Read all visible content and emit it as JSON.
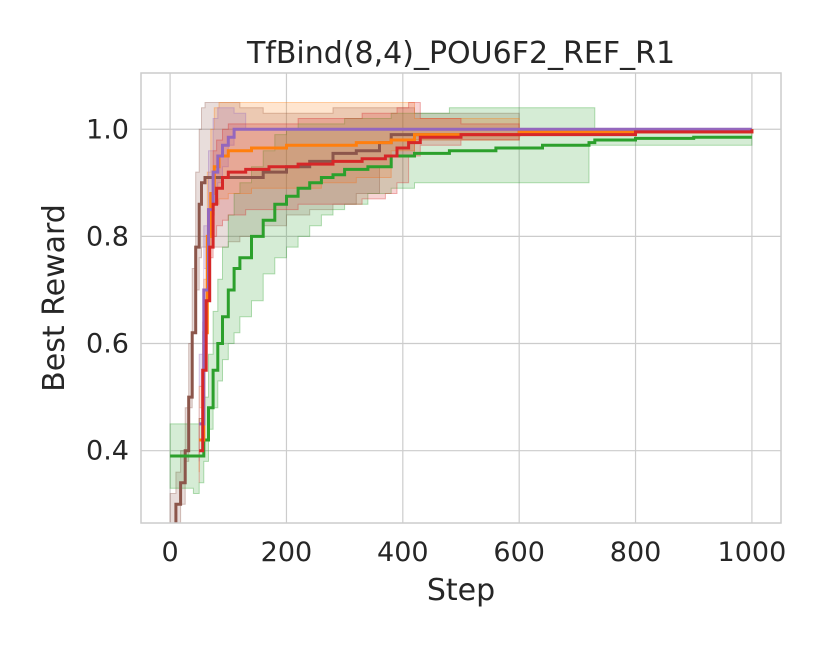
{
  "chart_data": {
    "type": "line",
    "title": "TfBind(8,4)_POU6F2_REF_R1",
    "xlabel": "Step",
    "ylabel": "Best Reward",
    "xlim": [
      -50,
      1050
    ],
    "ylim": [
      0.265,
      1.105
    ],
    "xticks": [
      0,
      200,
      400,
      600,
      800,
      1000
    ],
    "yticks": [
      0.4,
      0.6,
      0.8,
      1.0
    ],
    "xtick_labels": [
      "0",
      "200",
      "400",
      "600",
      "800",
      "1000"
    ],
    "ytick_labels": [
      "0.4",
      "0.6",
      "0.8",
      "1.0"
    ],
    "grid": true,
    "legend": "none",
    "series": [
      {
        "color": "#8c564b",
        "x": [
          0,
          10,
          18,
          26,
          32,
          38,
          44,
          50,
          54,
          60,
          80,
          100,
          120,
          160,
          200,
          240,
          280,
          320,
          360,
          380,
          420,
          600,
          1000
        ],
        "y": [
          0.26,
          0.3,
          0.34,
          0.4,
          0.5,
          0.62,
          0.78,
          0.86,
          0.9,
          0.91,
          0.91,
          0.91,
          0.91,
          0.92,
          0.93,
          0.94,
          0.955,
          0.96,
          0.975,
          0.99,
          0.99,
          0.995,
          1.0
        ],
        "lower": [
          0.18,
          0.22,
          0.26,
          0.3,
          0.38,
          0.48,
          0.62,
          0.7,
          0.76,
          0.78,
          0.78,
          0.78,
          0.79,
          0.8,
          0.82,
          0.84,
          0.85,
          0.86,
          0.88,
          0.93,
          0.95,
          0.98,
          1.0
        ],
        "upper": [
          0.32,
          0.36,
          0.4,
          0.48,
          0.6,
          0.74,
          0.92,
          1.0,
          1.04,
          1.05,
          1.05,
          1.05,
          1.04,
          1.03,
          1.03,
          1.03,
          1.04,
          1.04,
          1.04,
          1.04,
          1.03,
          1.0,
          1.0
        ]
      },
      {
        "color": "#2ca02c",
        "x": [
          0,
          40,
          50,
          58,
          66,
          74,
          82,
          90,
          100,
          110,
          120,
          140,
          160,
          180,
          200,
          220,
          240,
          260,
          280,
          300,
          340,
          380,
          420,
          480,
          560,
          640,
          720,
          730,
          800,
          900,
          1000
        ],
        "y": [
          0.39,
          0.39,
          0.39,
          0.42,
          0.48,
          0.55,
          0.6,
          0.65,
          0.7,
          0.74,
          0.76,
          0.8,
          0.83,
          0.86,
          0.875,
          0.89,
          0.9,
          0.91,
          0.915,
          0.925,
          0.93,
          0.95,
          0.955,
          0.96,
          0.965,
          0.97,
          0.975,
          0.98,
          0.983,
          0.985,
          0.985
        ],
        "lower": [
          0.33,
          0.33,
          0.32,
          0.34,
          0.38,
          0.44,
          0.48,
          0.53,
          0.57,
          0.6,
          0.62,
          0.65,
          0.68,
          0.73,
          0.76,
          0.78,
          0.8,
          0.82,
          0.84,
          0.85,
          0.86,
          0.88,
          0.89,
          0.9,
          0.9,
          0.9,
          0.9,
          0.97,
          0.97,
          0.97,
          0.97
        ],
        "upper": [
          0.45,
          0.45,
          0.46,
          0.5,
          0.58,
          0.66,
          0.72,
          0.78,
          0.84,
          0.88,
          0.9,
          0.93,
          0.96,
          0.99,
          1.0,
          1.01,
          1.01,
          1.01,
          1.01,
          1.02,
          1.02,
          1.03,
          1.03,
          1.04,
          1.04,
          1.04,
          1.04,
          0.99,
          0.995,
          1.0,
          1.0
        ]
      },
      {
        "color": "#ff7f0e",
        "x": [
          50,
          58,
          64,
          70,
          76,
          84,
          100,
          140,
          200,
          260,
          320,
          380,
          420,
          600,
          1000
        ],
        "y": [
          0.42,
          0.62,
          0.8,
          0.88,
          0.93,
          0.95,
          0.96,
          0.965,
          0.97,
          0.97,
          0.975,
          0.98,
          0.99,
          0.995,
          1.0
        ],
        "lower": [
          0.36,
          0.52,
          0.68,
          0.76,
          0.84,
          0.86,
          0.87,
          0.88,
          0.89,
          0.89,
          0.9,
          0.91,
          0.96,
          0.98,
          1.0
        ],
        "upper": [
          0.48,
          0.72,
          0.92,
          1.0,
          1.04,
          1.05,
          1.05,
          1.05,
          1.05,
          1.05,
          1.05,
          1.05,
          1.02,
          1.0,
          1.0
        ]
      },
      {
        "color": "#9467bd",
        "x": [
          50,
          58,
          66,
          74,
          82,
          90,
          100,
          110,
          130,
          200,
          400,
          1000
        ],
        "y": [
          0.45,
          0.7,
          0.85,
          0.92,
          0.95,
          0.97,
          0.985,
          1.0,
          1.0,
          1.0,
          1.0,
          1.0
        ],
        "lower": [
          0.38,
          0.58,
          0.74,
          0.82,
          0.86,
          0.9,
          0.93,
          0.97,
          1.0,
          1.0,
          1.0,
          1.0
        ],
        "upper": [
          0.52,
          0.82,
          0.96,
          1.02,
          1.04,
          1.04,
          1.04,
          1.03,
          1.0,
          1.0,
          1.0,
          1.0
        ]
      },
      {
        "color": "#d62728",
        "x": [
          50,
          56,
          62,
          68,
          74,
          80,
          90,
          100,
          130,
          170,
          220,
          280,
          330,
          370,
          390,
          410,
          430,
          500,
          600,
          800,
          1000
        ],
        "y": [
          0.4,
          0.55,
          0.68,
          0.78,
          0.86,
          0.89,
          0.91,
          0.92,
          0.925,
          0.93,
          0.935,
          0.94,
          0.945,
          0.95,
          0.965,
          0.975,
          0.985,
          0.99,
          0.99,
          0.995,
          1.0
        ],
        "lower": [
          0.34,
          0.46,
          0.58,
          0.68,
          0.76,
          0.8,
          0.82,
          0.83,
          0.84,
          0.85,
          0.85,
          0.86,
          0.86,
          0.87,
          0.88,
          0.9,
          0.95,
          0.97,
          0.98,
          0.99,
          1.0
        ],
        "upper": [
          0.46,
          0.64,
          0.78,
          0.88,
          0.96,
          0.98,
          1.0,
          1.01,
          1.01,
          1.01,
          1.02,
          1.02,
          1.03,
          1.03,
          1.04,
          1.05,
          1.02,
          1.01,
          1.0,
          1.0,
          1.0
        ]
      }
    ]
  }
}
